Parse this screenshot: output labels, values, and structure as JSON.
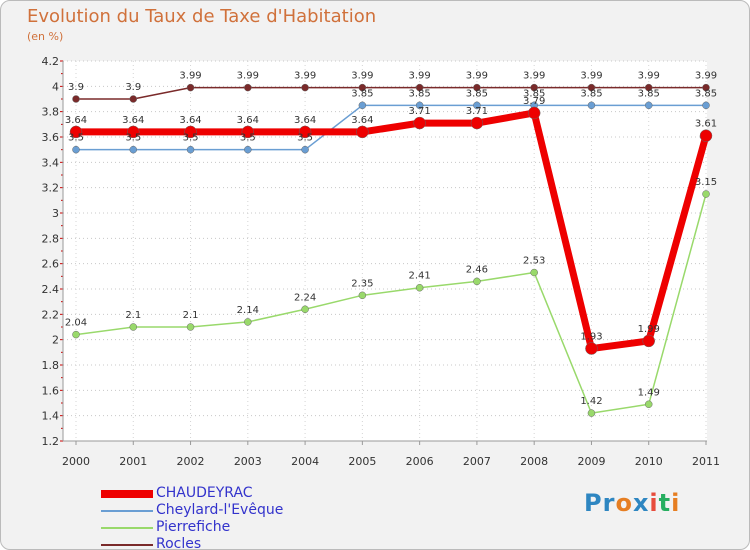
{
  "title": "Evolution du Taux de Taxe d'Habitation",
  "subtitle": "(en %)",
  "logo": {
    "text": "Proxiti",
    "colors": [
      "#2e86c1",
      "#2e86c1",
      "#e67e22",
      "#2e86c1",
      "#e74c3c",
      "#27ae60",
      "#e67e22"
    ]
  },
  "chart_data": {
    "type": "line",
    "x": [
      "2000",
      "2001",
      "2002",
      "2003",
      "2004",
      "2005",
      "2006",
      "2007",
      "2008",
      "2009",
      "2010",
      "2011"
    ],
    "ylim": [
      1.2,
      4.2
    ],
    "yticks": [
      "1.2",
      "1.4",
      "1.6",
      "1.8",
      "2",
      "2.2",
      "2.4",
      "2.6",
      "2.8",
      "3",
      "3.2",
      "3.4",
      "3.6",
      "3.8",
      "4",
      "4.2"
    ],
    "grid": "horizontal dotted",
    "legend_position": "bottom-left",
    "series": [
      {
        "name": "Rocles",
        "color": "#7a2a2a",
        "values": [
          3.9,
          3.9,
          3.99,
          3.99,
          3.99,
          3.99,
          3.99,
          3.99,
          3.99,
          3.99,
          3.99,
          3.99
        ],
        "labels": [
          "3.9",
          "3.9",
          "3.99",
          "3.99",
          "3.99",
          "3.99",
          "3.99",
          "3.99",
          "3.99",
          "3.99",
          "3.99",
          "3.99"
        ]
      },
      {
        "name": "Cheylard-l'Evêque",
        "color": "#6a9ed3",
        "values": [
          3.5,
          3.5,
          3.5,
          3.5,
          3.5,
          3.85,
          3.85,
          3.85,
          3.85,
          3.85,
          3.85,
          3.85
        ],
        "labels": [
          "3.5",
          "3.5",
          "3.5",
          "3.5",
          "3.5",
          "3.85",
          "3.85",
          "3.85",
          "3.85",
          "3.85",
          "3.85",
          "3.85"
        ]
      },
      {
        "name": "Pierrefiche",
        "color": "#99d96b",
        "values": [
          2.04,
          2.1,
          2.1,
          2.14,
          2.24,
          2.35,
          2.41,
          2.46,
          2.53,
          1.42,
          1.49,
          3.15
        ],
        "labels": [
          "2.04",
          "2.1",
          "2.1",
          "2.14",
          "2.24",
          "2.35",
          "2.41",
          "2.46",
          "2.53",
          "1.42",
          "1.49",
          "3.15"
        ]
      },
      {
        "name": "CHAUDEYRAC",
        "color": "#ee0000",
        "values": [
          3.64,
          3.64,
          3.64,
          3.64,
          3.64,
          3.64,
          3.71,
          3.71,
          3.79,
          1.93,
          1.99,
          3.61
        ],
        "labels": [
          "3.64",
          "3.64",
          "3.64",
          "3.64",
          "3.64",
          "3.64",
          "3.71",
          "3.71",
          "3.79",
          "1.93",
          "1.99",
          "3.61"
        ]
      }
    ],
    "legend": [
      {
        "name": "CHAUDEYRAC",
        "color": "#ee0000"
      },
      {
        "name": "Cheylard-l'Evêque",
        "color": "#6a9ed3"
      },
      {
        "name": "Pierrefiche",
        "color": "#99d96b"
      },
      {
        "name": "Rocles",
        "color": "#7a2a2a"
      }
    ]
  }
}
